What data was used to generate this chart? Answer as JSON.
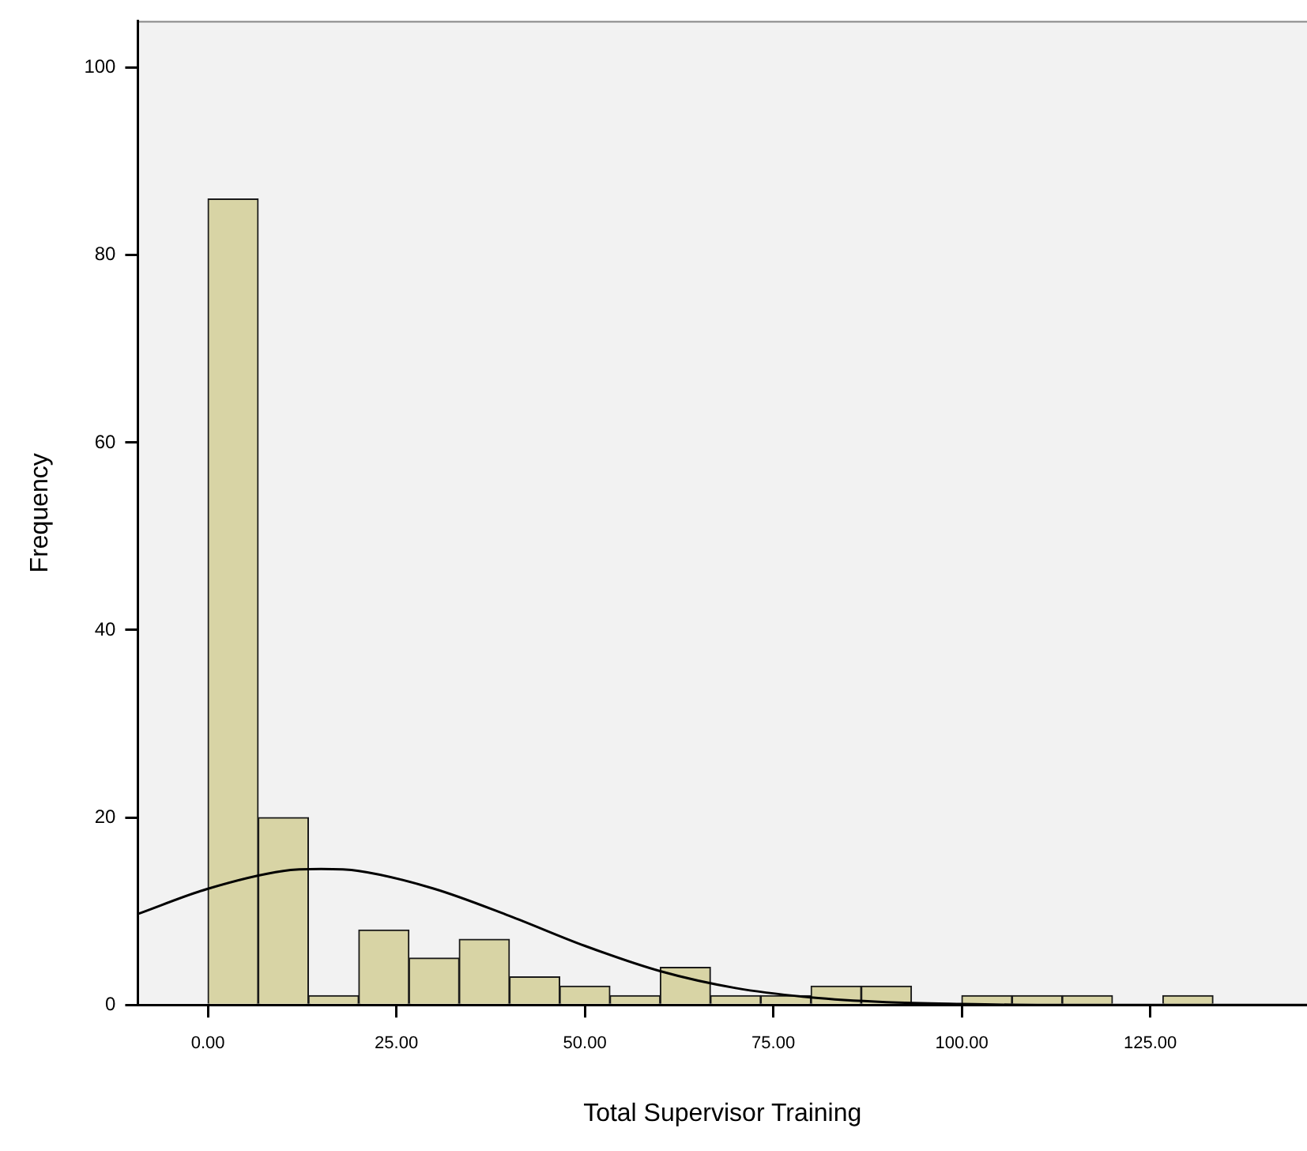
{
  "chart_data": {
    "type": "histogram",
    "xlabel": "Total Supervisor Training",
    "ylabel": "Frequency",
    "bins": [
      0,
      6.67,
      13.33,
      20,
      26.67,
      33.33,
      40,
      46.67,
      53.33,
      60,
      66.67,
      73.33,
      80,
      86.67,
      93.33,
      100,
      106.67,
      113.33,
      120,
      126.67,
      133.33
    ],
    "values": [
      86,
      20,
      1,
      8,
      5,
      7,
      3,
      2,
      1,
      4,
      1,
      1,
      2,
      2,
      0,
      1,
      1,
      1,
      0,
      1
    ],
    "color": "#d8d4a5",
    "series": [
      {
        "type": "line",
        "color": "#000000",
        "x": [
          -9.3,
          0,
          10,
          15,
          20,
          30,
          40,
          50,
          60,
          70,
          80,
          90,
          100,
          110,
          125,
          145.8
        ],
        "values": [
          9.7,
          12.4,
          14.3,
          14.5,
          14.3,
          12.4,
          9.5,
          6.3,
          3.6,
          1.8,
          0.8,
          0.3,
          0.1,
          0,
          0,
          0
        ]
      }
    ],
    "xlim": [
      -9.3,
      145.8
    ],
    "ylim": [
      0,
      105
    ],
    "xticks": [
      {
        "value": 0,
        "label": "0.00"
      },
      {
        "value": 25,
        "label": "25.00"
      },
      {
        "value": 50,
        "label": "50.00"
      },
      {
        "value": 75,
        "label": "75.00"
      },
      {
        "value": 100,
        "label": "100.00"
      },
      {
        "value": 125,
        "label": "125.00"
      }
    ],
    "yticks": [
      0,
      20,
      40,
      60,
      80,
      100
    ],
    "grid": false,
    "legend": false,
    "marker": "none"
  }
}
